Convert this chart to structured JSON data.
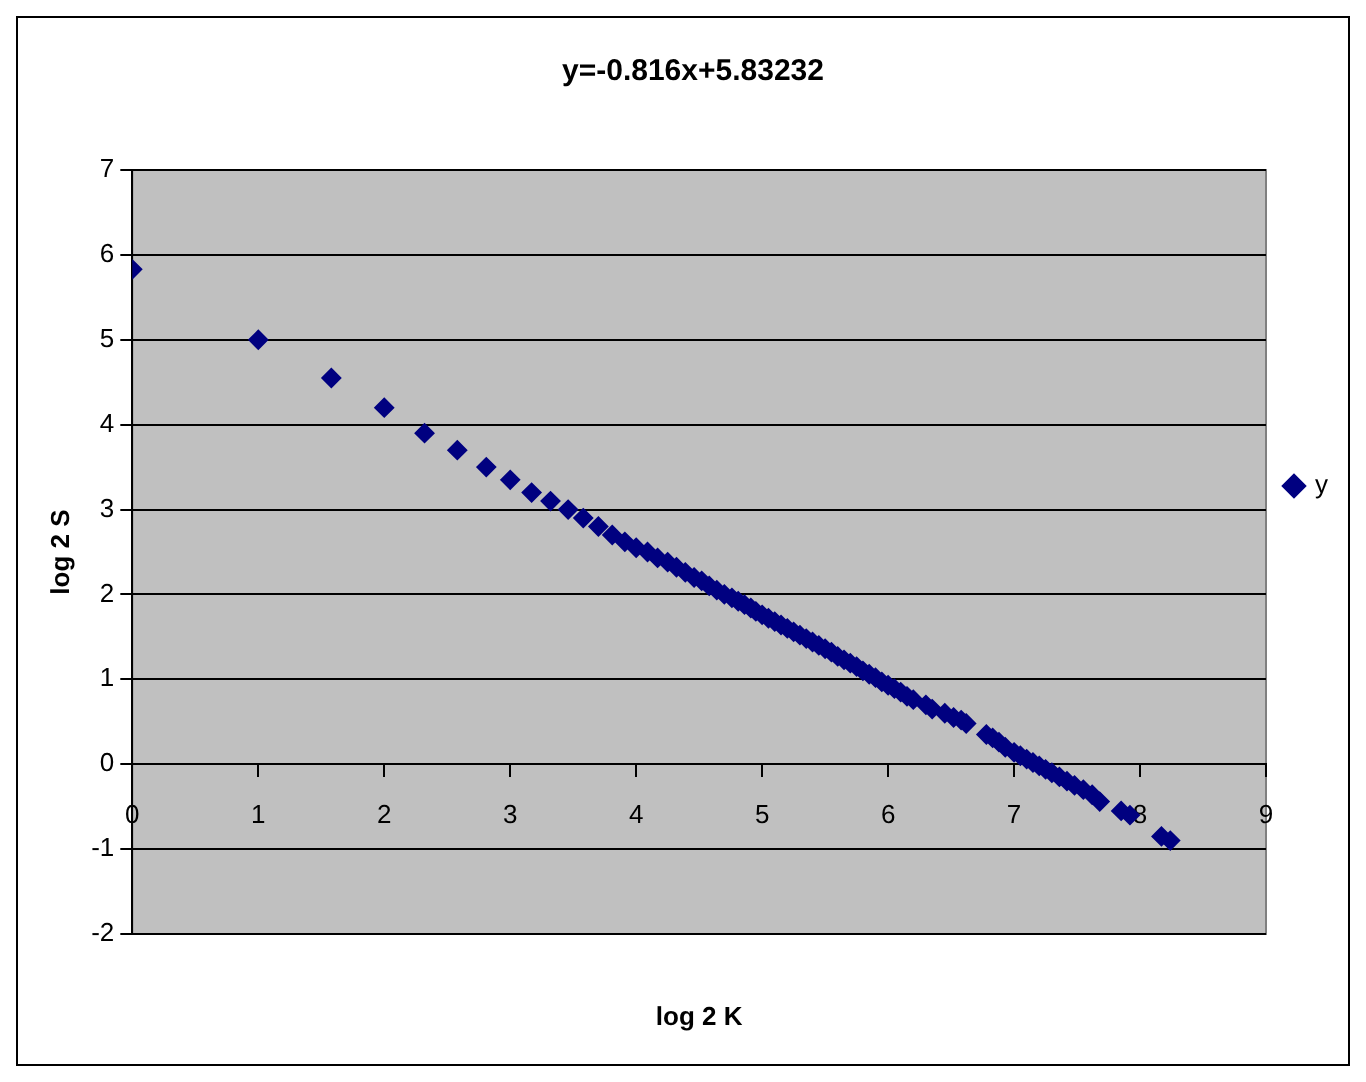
{
  "chart_data": {
    "type": "scatter",
    "title": "y=-0.816x+5.83232",
    "xlabel": "log 2 K",
    "ylabel": "log 2 S",
    "series": [
      {
        "name": "y",
        "color": "#000080",
        "x": [
          0,
          1,
          1.58,
          2,
          2.32,
          2.58,
          2.81,
          3,
          3.17,
          3.32,
          3.46,
          3.58,
          3.7,
          3.81,
          3.91,
          4,
          4.09,
          4.17,
          4.25,
          4.32,
          4.39,
          4.46,
          4.52,
          4.58,
          4.64,
          4.7,
          4.76,
          4.81,
          4.86,
          4.91,
          4.95,
          5,
          5.05,
          5.1,
          5.15,
          5.2,
          5.25,
          5.3,
          5.35,
          5.4,
          5.45,
          5.5,
          5.55,
          5.6,
          5.65,
          5.7,
          5.75,
          5.8,
          5.85,
          5.9,
          5.95,
          6,
          6.05,
          6.1,
          6.15,
          6.2,
          6.3,
          6.35,
          6.45,
          6.52,
          6.58,
          6.62,
          6.78,
          6.83,
          6.88,
          6.93,
          7,
          7.05,
          7.1,
          7.15,
          7.2,
          7.25,
          7.3,
          7.36,
          7.42,
          7.48,
          7.55,
          7.62,
          7.68,
          7.85,
          7.92,
          8.17,
          8.24
        ],
        "values": [
          5.83,
          5,
          4.55,
          4.2,
          3.9,
          3.7,
          3.5,
          3.35,
          3.2,
          3.1,
          3,
          2.9,
          2.8,
          2.7,
          2.62,
          2.55,
          2.5,
          2.43,
          2.38,
          2.32,
          2.26,
          2.2,
          2.16,
          2.1,
          2.05,
          2,
          1.96,
          1.92,
          1.88,
          1.84,
          1.8,
          1.76,
          1.72,
          1.68,
          1.64,
          1.6,
          1.56,
          1.52,
          1.48,
          1.44,
          1.4,
          1.36,
          1.32,
          1.27,
          1.23,
          1.19,
          1.15,
          1.1,
          1.06,
          1.02,
          0.97,
          0.93,
          0.89,
          0.85,
          0.8,
          0.76,
          0.7,
          0.65,
          0.6,
          0.55,
          0.52,
          0.48,
          0.35,
          0.31,
          0.26,
          0.2,
          0.14,
          0.1,
          0.06,
          0.02,
          -0.02,
          -0.06,
          -0.1,
          -0.15,
          -0.2,
          -0.25,
          -0.3,
          -0.36,
          -0.44,
          -0.55,
          -0.6,
          -0.85,
          -0.9
        ]
      }
    ],
    "xlim": [
      0,
      9
    ],
    "ylim": [
      -2,
      7
    ],
    "xticks": [
      0,
      1,
      2,
      3,
      4,
      5,
      6,
      7,
      8,
      9
    ],
    "yticks": [
      -2,
      -1,
      0,
      1,
      2,
      3,
      4,
      5,
      6,
      7
    ],
    "grid": "y",
    "legend": "right",
    "marker": "diamond"
  }
}
